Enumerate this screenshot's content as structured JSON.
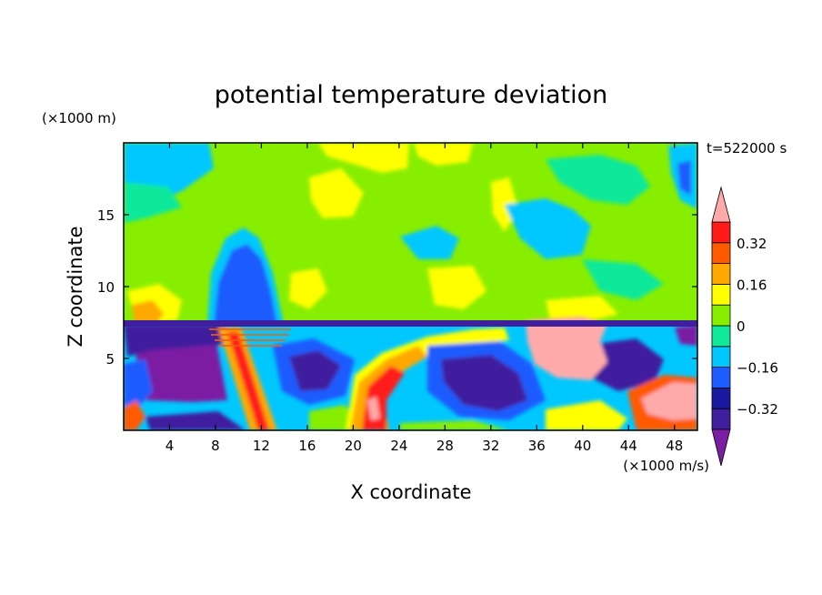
{
  "chart_data": {
    "type": "heatmap",
    "title": "potential temperature deviation",
    "xlabel": "X coordinate",
    "ylabel": "Z coordinate",
    "x_unit": "(×1000 m/s)",
    "y_unit": "(×1000 m)",
    "time_label": "t=522000 s",
    "xlim": [
      0,
      50
    ],
    "ylim": [
      0,
      20
    ],
    "x_ticks": [
      4,
      8,
      12,
      16,
      20,
      24,
      28,
      32,
      36,
      40,
      44,
      48
    ],
    "y_ticks": [
      5,
      10,
      15
    ],
    "colorbar": {
      "levels": [
        -0.4,
        -0.32,
        -0.24,
        -0.16,
        -0.08,
        0,
        0.08,
        0.16,
        0.24,
        0.32,
        0.4
      ],
      "labels": [
        "0.32",
        "0.16",
        "0",
        "−0.16",
        "−0.32"
      ],
      "label_values": [
        0.32,
        0.16,
        0,
        -0.16,
        -0.32
      ],
      "colors_low_to_high": [
        "#7b1fa2",
        "#3f1f9e",
        "#1a1aa0",
        "#1e5cff",
        "#00c8ff",
        "#10e89a",
        "#88ee00",
        "#ffff00",
        "#ffa800",
        "#ff5a00",
        "#ff1a1a",
        "#ffaaaa"
      ],
      "extend": "both"
    }
  }
}
